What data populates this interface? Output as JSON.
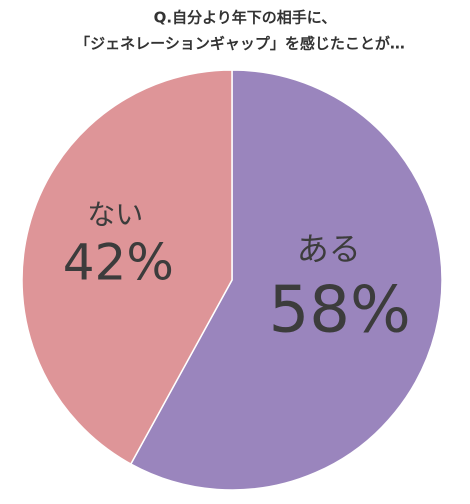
{
  "chart_data": {
    "type": "pie",
    "title": [
      "Q.自分より年下の相手に、",
      "「ジェネレーションギャップ」を感じたことが…"
    ],
    "categories": [
      "ある",
      "ない"
    ],
    "values": [
      58,
      42
    ],
    "value_labels": [
      "58%",
      "42%"
    ],
    "colors": [
      "#9a85bd",
      "#de9598"
    ]
  }
}
